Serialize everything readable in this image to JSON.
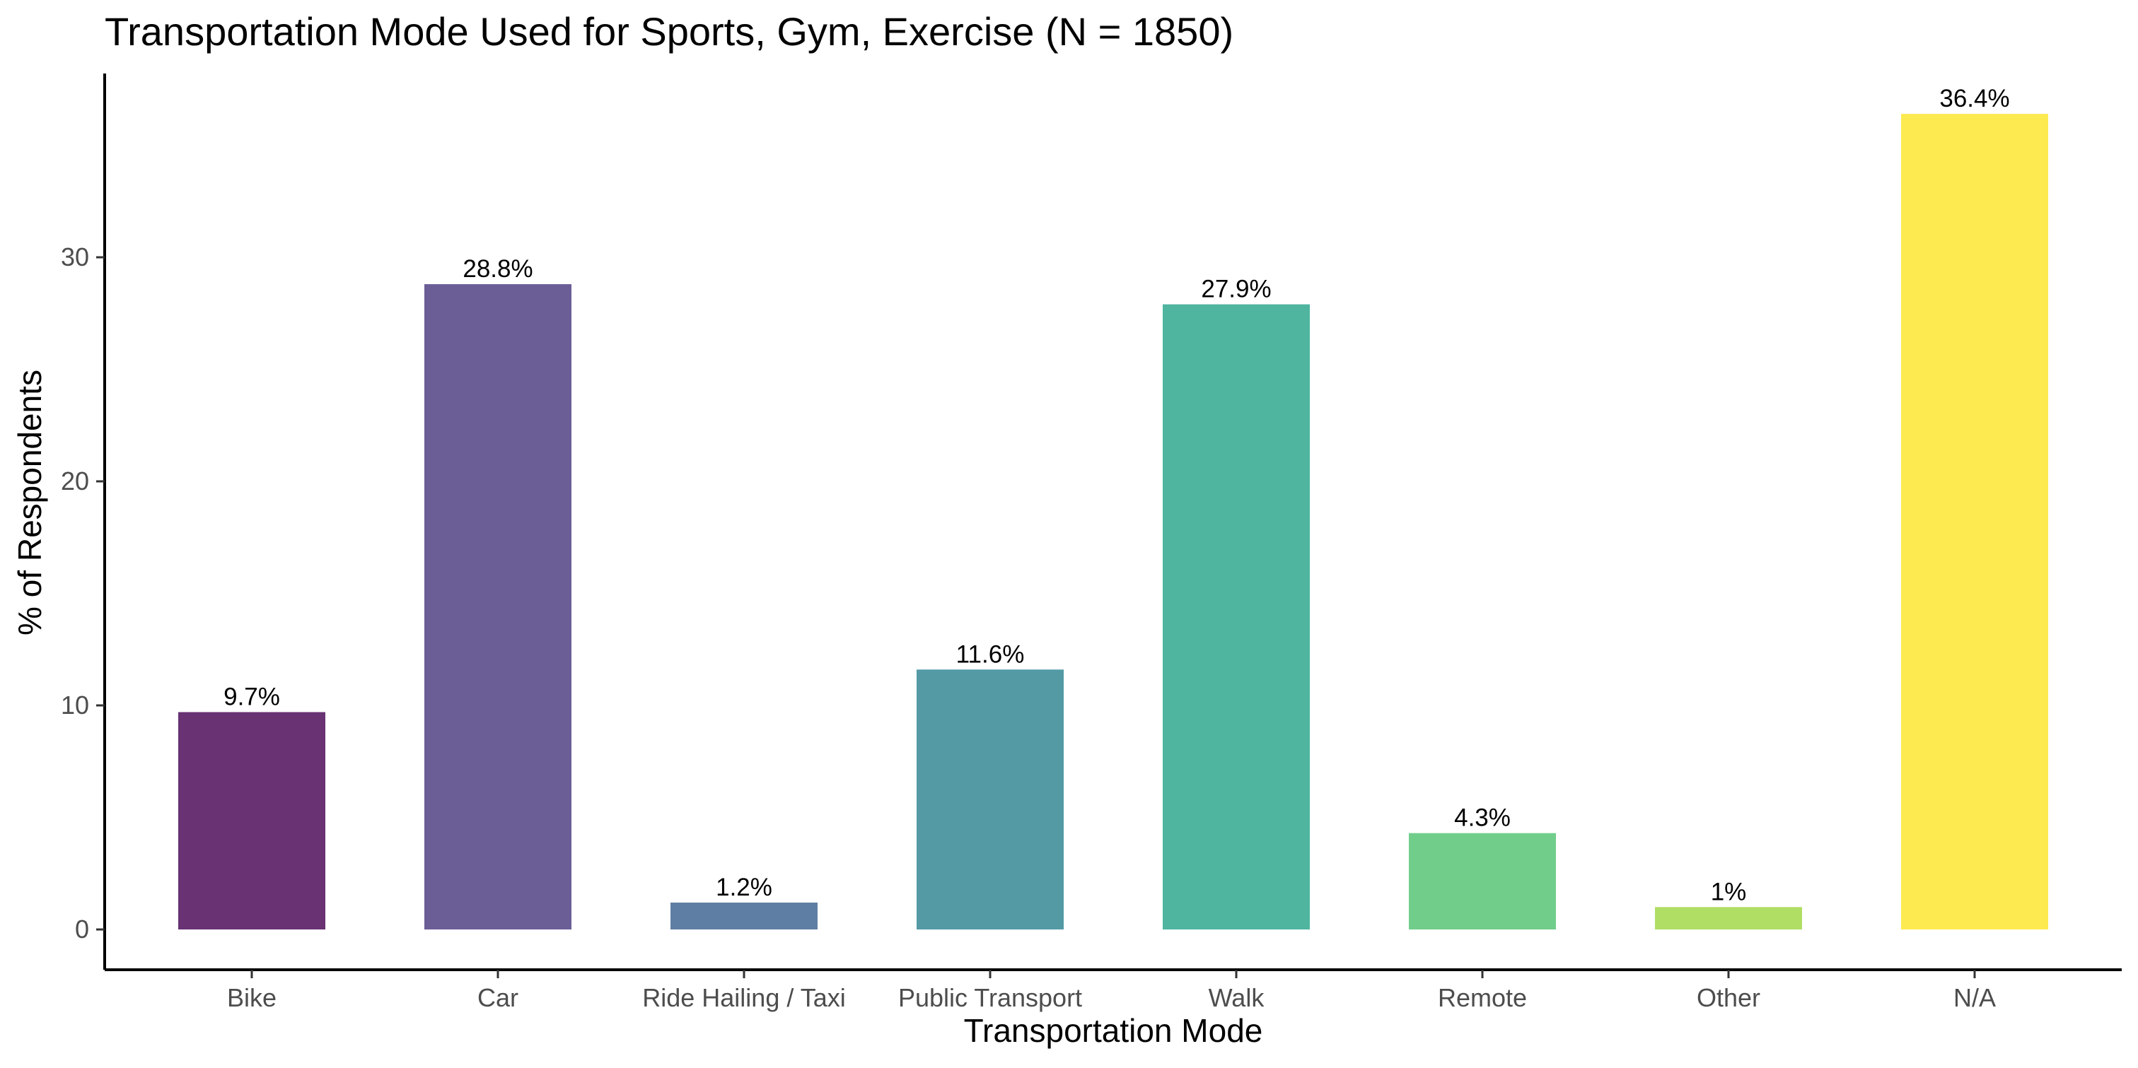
{
  "chart_data": {
    "type": "bar",
    "title": "Transportation Mode Used for Sports, Gym, Exercise (N = 1850)",
    "xlabel": "Transportation Mode",
    "ylabel": "% of Respondents",
    "categories": [
      "Bike",
      "Car",
      "Ride Hailing / Taxi",
      "Public Transport",
      "Walk",
      "Remote",
      "Other",
      "N/A"
    ],
    "values": [
      9.7,
      28.8,
      1.2,
      11.6,
      27.9,
      4.3,
      1.0,
      36.4
    ],
    "data_labels": [
      "9.7%",
      "28.8%",
      "1.2%",
      "11.6%",
      "27.9%",
      "4.3%",
      "1%",
      "36.4%"
    ],
    "colors": [
      "#683273",
      "#6b5d96",
      "#5f7ea3",
      "#539aa5",
      "#4fb59f",
      "#71cd8a",
      "#b0de64",
      "#fdea50"
    ],
    "yticks": [
      0,
      10,
      20,
      30
    ],
    "ylim": [
      -1.7,
      38.2
    ],
    "grid": false,
    "legend": "none"
  }
}
